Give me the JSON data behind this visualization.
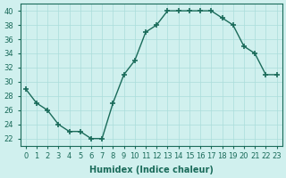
{
  "x": [
    0,
    1,
    2,
    3,
    4,
    5,
    6,
    7,
    8,
    9,
    10,
    11,
    12,
    13,
    14,
    15,
    16,
    17,
    18,
    19,
    20,
    21,
    22,
    23
  ],
  "y": [
    29,
    27,
    26,
    24,
    23,
    23,
    22,
    22,
    27,
    31,
    33,
    37,
    38,
    40,
    40,
    40,
    40,
    40,
    39,
    38,
    35,
    34,
    31,
    31
  ],
  "line_color": "#1a6b5a",
  "marker": "P",
  "bg_color": "#d0f0ee",
  "grid_color": "#aaddda",
  "xlabel": "Humidex (Indice chaleur)",
  "ylim": [
    21,
    41
  ],
  "xlim": [
    -0.5,
    23.5
  ],
  "yticks": [
    22,
    24,
    26,
    28,
    30,
    32,
    34,
    36,
    38,
    40
  ],
  "xtick_labels": [
    "0",
    "1",
    "2",
    "3",
    "4",
    "5",
    "6",
    "7",
    "8",
    "9",
    "10",
    "11",
    "12",
    "13",
    "14",
    "15",
    "16",
    "17",
    "18",
    "19",
    "20",
    "21",
    "22",
    "23"
  ],
  "label_fontsize": 7,
  "tick_fontsize": 6
}
